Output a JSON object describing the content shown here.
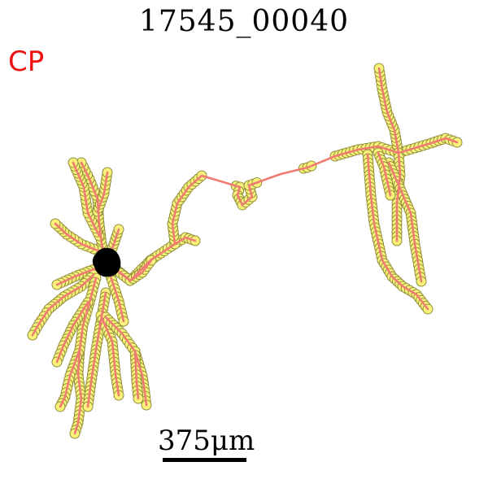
{
  "title": "17545_00040",
  "region_label": "CP",
  "scale_bar": {
    "label": "375μm"
  },
  "colors": {
    "region_label": "#ee1111",
    "neurite": "#f07b72",
    "marker_fill": "#f8f27a",
    "marker_stroke": "#8f8d3c",
    "soma": "#000000"
  }
}
